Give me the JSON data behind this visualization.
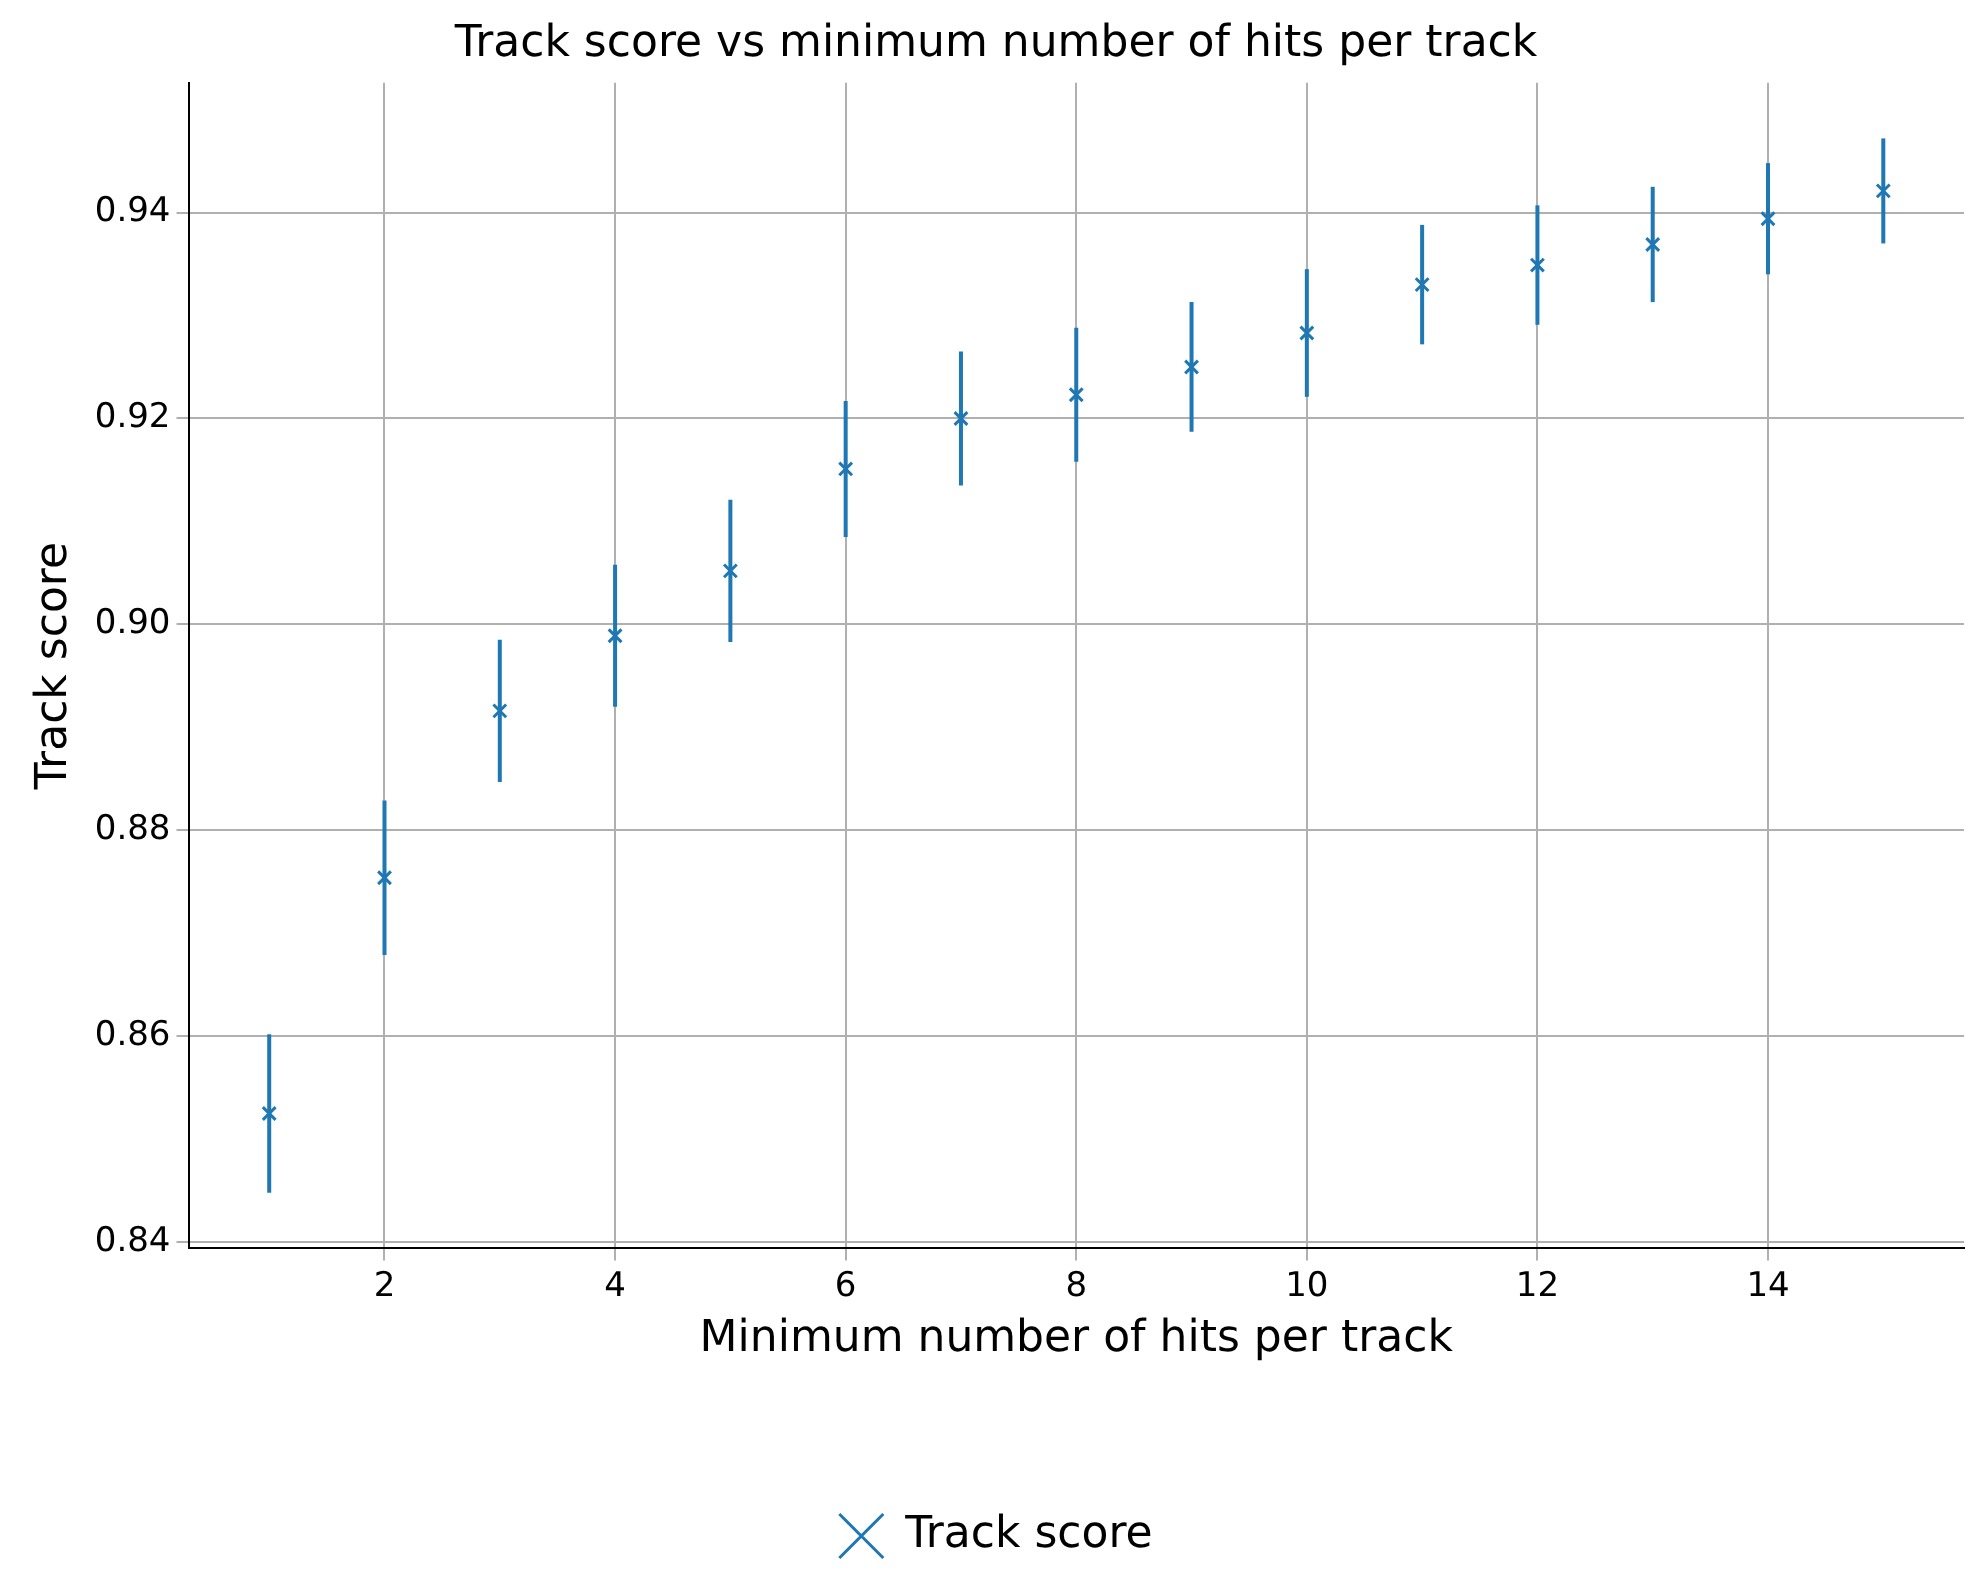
{
  "chart_data": {
    "type": "scatter",
    "title": "Track score vs minimum number of hits per track",
    "xlabel": "Minimum number of hits per track",
    "ylabel": "Track score",
    "x": [
      1,
      2,
      3,
      4,
      5,
      6,
      7,
      8,
      9,
      10,
      11,
      12,
      13,
      14,
      15
    ],
    "series": [
      {
        "name": "Track score",
        "color": "#1f77b4",
        "values": [
          0.8525,
          0.8754,
          0.8916,
          0.8989,
          0.9052,
          0.9151,
          0.92,
          0.9223,
          0.925,
          0.9283,
          0.933,
          0.9349,
          0.9369,
          0.9394,
          0.9421
        ],
        "errors": [
          0.0077,
          0.0075,
          0.0069,
          0.0069,
          0.0069,
          0.0066,
          0.0065,
          0.0065,
          0.0063,
          0.0062,
          0.0058,
          0.0058,
          0.0056,
          0.0054,
          0.0051
        ]
      }
    ],
    "xlim": [
      0.3,
      15.7
    ],
    "xticks": [
      2,
      4,
      6,
      8,
      10,
      12,
      14
    ],
    "ylim": [
      0.8394,
      0.9526
    ],
    "yticks": [
      0.84,
      0.86,
      0.88,
      {
        "value": 0.9,
        "label": "0.90"
      },
      0.92,
      0.94
    ],
    "grid": true,
    "legend": "bottom",
    "marker": "cross"
  }
}
